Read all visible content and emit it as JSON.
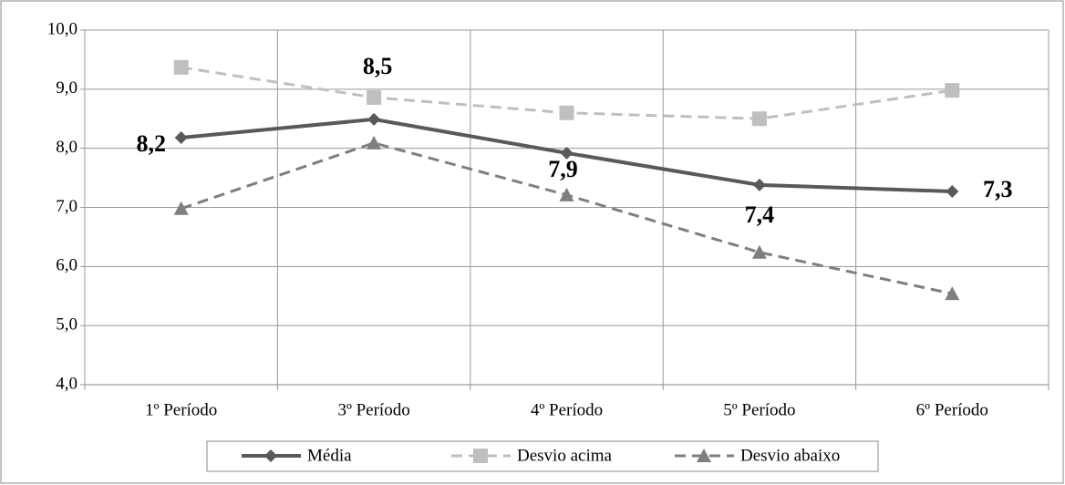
{
  "chart_data": {
    "type": "line",
    "categories": [
      "1º Período",
      "3º Período",
      "4º Período",
      "5º Período",
      "6º Período"
    ],
    "series": [
      {
        "name": "Média",
        "color": "#595959",
        "dash": false,
        "marker": "diamond",
        "values": [
          8.18,
          8.49,
          7.92,
          7.38,
          7.27
        ],
        "value_labels": [
          "8,2",
          "8,5",
          "7,9",
          "7,4",
          "7,3"
        ]
      },
      {
        "name": "Desvio acima",
        "color": "#bfbfbf",
        "dash": true,
        "marker": "square",
        "values": [
          9.37,
          8.86,
          8.6,
          8.5,
          8.98
        ]
      },
      {
        "name": "Desvio abaixo",
        "color": "#7f7f7f",
        "dash": true,
        "marker": "triangle",
        "values": [
          6.98,
          8.09,
          7.21,
          6.24,
          5.54
        ]
      }
    ],
    "ylim": [
      4,
      10
    ],
    "yticks": [
      {
        "value": 4,
        "label": "4,0"
      },
      {
        "value": 5,
        "label": "5,0"
      },
      {
        "value": 6,
        "label": "6,0"
      },
      {
        "value": 7,
        "label": "7,0"
      },
      {
        "value": 8,
        "label": "8,0"
      },
      {
        "value": 9,
        "label": "9,0"
      },
      {
        "value": 10,
        "label": "10,0"
      }
    ],
    "grid": true,
    "legend": "bottom"
  }
}
